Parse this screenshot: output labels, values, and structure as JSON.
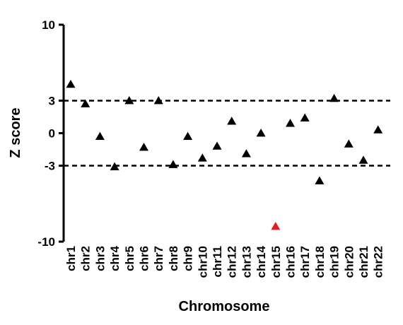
{
  "chart_data": {
    "type": "scatter",
    "xlabel": "Chromosome",
    "ylabel": "Z score",
    "ylim": [
      -10,
      10
    ],
    "yticks": [
      10,
      3,
      0,
      -3,
      -10
    ],
    "categories": [
      "chr1",
      "chr2",
      "chr3",
      "chr4",
      "chr5",
      "chr6",
      "chr7",
      "chr8",
      "chr9",
      "chr10",
      "chr11",
      "chr12",
      "chr13",
      "chr14",
      "chr15",
      "chr16",
      "chr17",
      "chr18",
      "chr19",
      "chr20",
      "chr21",
      "chr22"
    ],
    "values": [
      4.5,
      2.7,
      -0.3,
      -3.1,
      3.0,
      -1.3,
      3.0,
      -2.9,
      -0.3,
      -2.3,
      -1.2,
      1.1,
      -1.9,
      0.0,
      -8.6,
      0.9,
      1.4,
      -4.4,
      3.2,
      -1.0,
      -2.5,
      0.3
    ],
    "highlight_index": 14,
    "colors": {
      "default": "#000000",
      "highlight": "#e02020"
    },
    "reference_lines": [
      3,
      -3
    ],
    "grid": false,
    "marker": "triangle"
  }
}
